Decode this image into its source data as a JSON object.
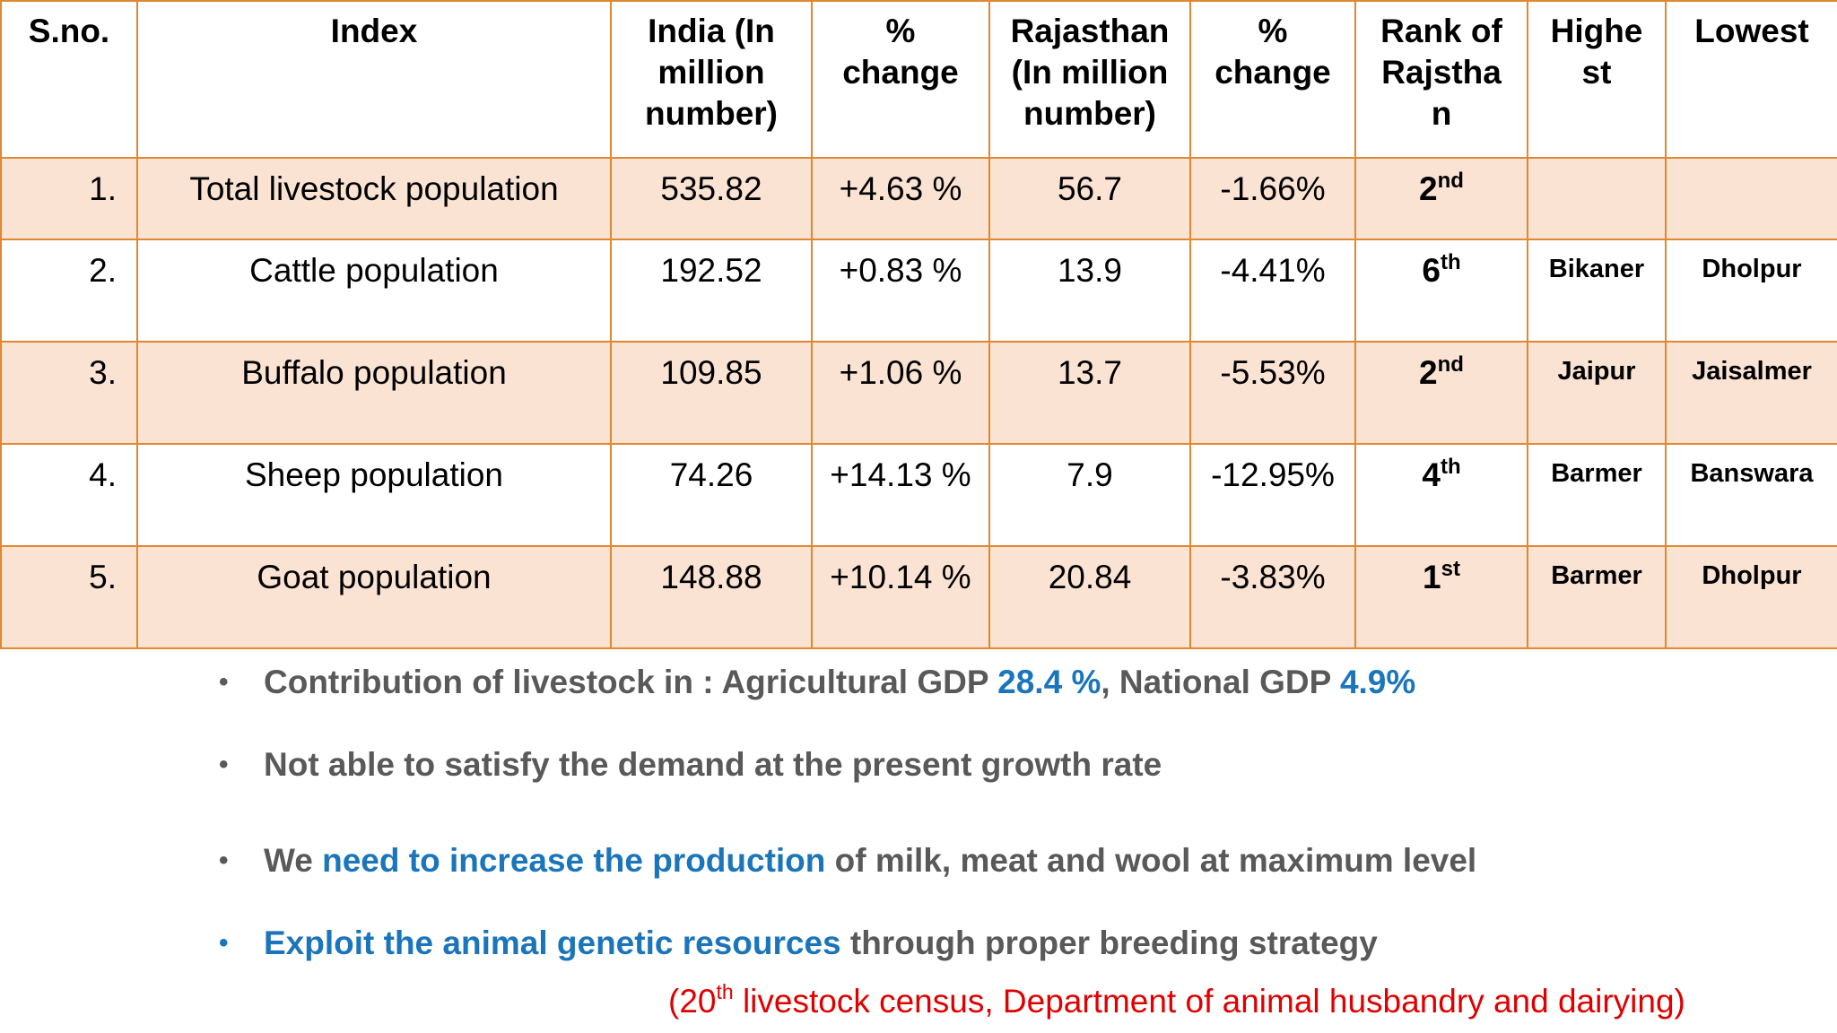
{
  "table": {
    "headers": {
      "sno": "S.no.",
      "index": "Index",
      "india": "India (In million number)",
      "india_change": "% change",
      "rajasthan": "Rajasthan (In million number)",
      "rajasthan_change": "% change",
      "rank": "Rank of Rajsthan",
      "highest": "Highest",
      "lowest": "Lowest"
    },
    "rows": [
      {
        "sno": "1.",
        "index": "Total livestock population",
        "india": "535.82",
        "india_change": "+4.63 %",
        "rajasthan": "56.7",
        "rajasthan_change": "-1.66%",
        "rank_num": "2",
        "rank_suffix": "nd",
        "highest": "",
        "lowest": ""
      },
      {
        "sno": "2.",
        "index": "Cattle population",
        "india": "192.52",
        "india_change": "+0.83 %",
        "rajasthan": "13.9",
        "rajasthan_change": "-4.41%",
        "rank_num": "6",
        "rank_suffix": "th",
        "highest": "Bikaner",
        "lowest": "Dholpur"
      },
      {
        "sno": "3.",
        "index": "Buffalo population",
        "india": "109.85",
        "india_change": "+1.06 %",
        "rajasthan": "13.7",
        "rajasthan_change": "-5.53%",
        "rank_num": "2",
        "rank_suffix": "nd",
        "highest": "Jaipur",
        "lowest": "Jaisalmer"
      },
      {
        "sno": "4.",
        "index": "Sheep population",
        "india": "74.26",
        "india_change": "+14.13 %",
        "rajasthan": "7.9",
        "rajasthan_change": "-12.95%",
        "rank_num": "4",
        "rank_suffix": "th",
        "highest": "Barmer",
        "lowest": "Banswara"
      },
      {
        "sno": "5.",
        "index": "Goat population",
        "india": "148.88",
        "india_change": "+10.14 %",
        "rajasthan": "20.84",
        "rajasthan_change": "-3.83%",
        "rank_num": "1",
        "rank_suffix": "st",
        "highest": "Barmer",
        "lowest": "Dholpur"
      }
    ]
  },
  "notes": {
    "bullet_glyph": "•",
    "b1_text": "Contribution of livestock in : Agricultural GDP ",
    "b1_value1": "28.4 %",
    "b1_mid": ", National GDP ",
    "b1_value2": "4.9%",
    "b2_text": "Not able to satisfy the demand at the present growth rate",
    "b3_pre": "We ",
    "b3_highlight": "need to increase the production",
    "b3_post": " of milk, meat and wool at maximum level",
    "b4_highlight": "Exploit the animal genetic resources",
    "b4_post": " through proper breeding strategy",
    "citation_pre": "(20",
    "citation_sup": "th",
    "citation_post": " livestock census, Department of animal husbandry and dairying)"
  },
  "colors": {
    "border": "#e0872f",
    "shade": "#fbe3d3",
    "bullet_text": "#595959",
    "highlight_blue": "#1b75bb",
    "citation_red": "#e00000"
  }
}
